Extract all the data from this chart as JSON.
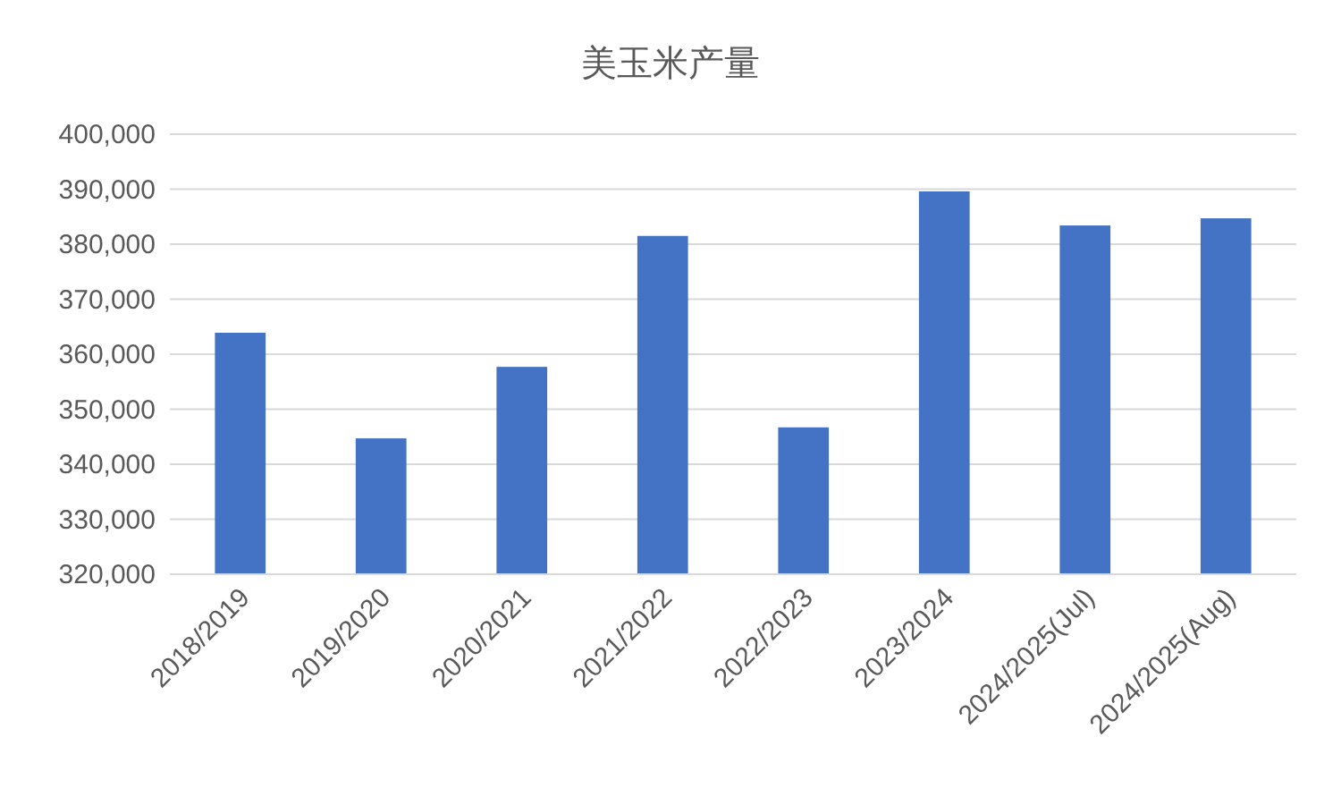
{
  "chart_data": {
    "type": "bar",
    "title": "美玉米产量",
    "categories": [
      "2018/2019",
      "2019/2020",
      "2020/2021",
      "2021/2022",
      "2022/2023",
      "2023/2024",
      "2024/2025(Jul)",
      "2024/2025(Aug)"
    ],
    "values": [
      363900,
      344700,
      357700,
      381500,
      346700,
      389600,
      383400,
      384700
    ],
    "color": "#4472c4",
    "ylim": [
      320000,
      400000
    ],
    "yticks": [
      {
        "value": 320000,
        "label": "320,000"
      },
      {
        "value": 330000,
        "label": "330,000"
      },
      {
        "value": 340000,
        "label": "340,000"
      },
      {
        "value": 350000,
        "label": "350,000"
      },
      {
        "value": 360000,
        "label": "360,000"
      },
      {
        "value": 370000,
        "label": "370,000"
      },
      {
        "value": 380000,
        "label": "380,000"
      },
      {
        "value": 390000,
        "label": "390,000"
      },
      {
        "value": 400000,
        "label": "400,000"
      }
    ],
    "grid": "y"
  }
}
